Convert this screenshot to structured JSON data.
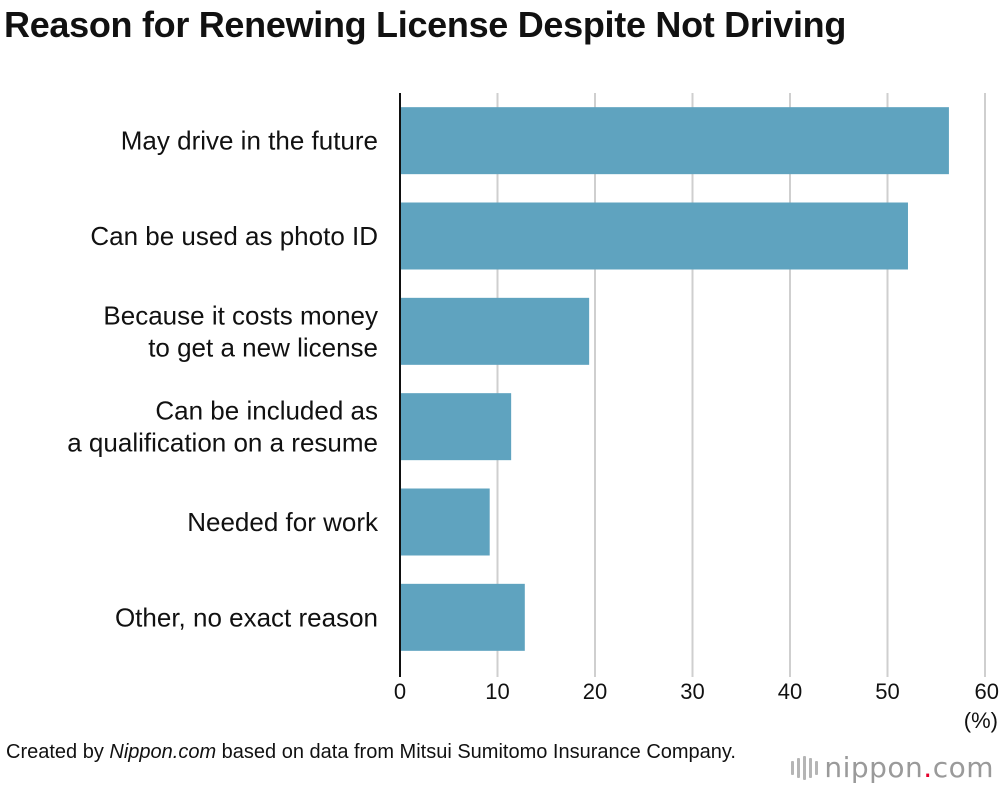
{
  "title": "Reason for Renewing License Despite Not Driving",
  "chart_data": {
    "type": "bar",
    "orientation": "horizontal",
    "title": "Reason for Renewing License Despite Not Driving",
    "categories": [
      [
        "May drive in the future"
      ],
      [
        "Can be used as photo ID"
      ],
      [
        "Because it costs money",
        "to get a new license"
      ],
      [
        "Can be included as",
        "a qualification on a resume"
      ],
      [
        "Needed for work"
      ],
      [
        "Other, no exact reason"
      ]
    ],
    "values": [
      56.3,
      52.1,
      19.4,
      11.4,
      9.2,
      12.8
    ],
    "xlim": [
      0,
      60
    ],
    "xticks": [
      0,
      10,
      20,
      30,
      40,
      50,
      60
    ],
    "xlabel": "(%)",
    "ylabel": "",
    "grid": true,
    "bar_color": "#5fa3bf",
    "grid_color": "#cfcfcf"
  },
  "source": {
    "prefix": "Created by ",
    "publisher": "Nippon.com",
    "suffix": " based on data from Mitsui Sumitomo Insurance Company."
  },
  "brand": {
    "name": "nippon",
    "dot": ".",
    "tld": "com",
    "icon": "barcode-mark-icon"
  }
}
